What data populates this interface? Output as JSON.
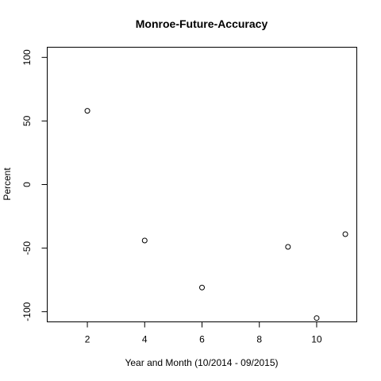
{
  "chart_data": {
    "type": "scatter",
    "title": "Monroe-Future-Accuracy",
    "xlabel": "Year and Month (10/2014 - 09/2015)",
    "ylabel": "Percent",
    "xlim": [
      0.6,
      11.4
    ],
    "ylim": [
      -108,
      108
    ],
    "xticks": [
      2,
      4,
      6,
      8,
      10
    ],
    "yticks": [
      -100,
      -50,
      0,
      50,
      100
    ],
    "xtick_labels": [
      "2",
      "4",
      "6",
      "8",
      "10"
    ],
    "ytick_labels": [
      "-100",
      "-50",
      "0",
      "50",
      "100"
    ],
    "grid": false,
    "points": [
      {
        "x": 2,
        "y": 58
      },
      {
        "x": 4,
        "y": -44
      },
      {
        "x": 6,
        "y": -81
      },
      {
        "x": 9,
        "y": -49
      },
      {
        "x": 10,
        "y": -105
      },
      {
        "x": 11,
        "y": -39
      }
    ]
  }
}
